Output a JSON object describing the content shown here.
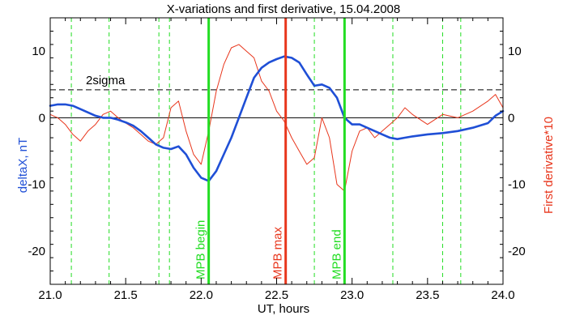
{
  "chart_data": {
    "type": "line",
    "title": "X-variations and first derivative, 15.04.2008",
    "xlabel": "UT, hours",
    "ylabel_left": "deltaX, nT",
    "ylabel_right": "First derivative*10",
    "xlim": [
      21.0,
      24.0
    ],
    "ylim_left": [
      -25,
      15
    ],
    "ylim_right": [
      -25,
      15
    ],
    "x_ticks": [
      21.0,
      21.5,
      22.0,
      22.5,
      23.0,
      23.5,
      24.0
    ],
    "x_tick_labels": [
      "21.0",
      "21.5",
      "22.0",
      "22.5",
      "23.0",
      "23.5",
      "24.0"
    ],
    "y_ticks": [
      10,
      0,
      -10,
      -20
    ],
    "y_tick_labels": [
      "10",
      "0",
      "-10",
      "-20"
    ],
    "colors": {
      "deltaX": "#1f4fd6",
      "derivative": "#e8361c",
      "mpb_boundary": "#22dd22",
      "mpb_max": "#e8361c",
      "reference": "#000000",
      "guide": "#22dd22"
    },
    "sigma_line": {
      "label": "2sigma",
      "y": 4.2
    },
    "zero_line": {
      "y": 0
    },
    "vertical_markers": [
      {
        "x": 22.05,
        "label": "MPB begin",
        "color": "#22dd22"
      },
      {
        "x": 22.56,
        "label": "MPB max",
        "color": "#e8361c"
      },
      {
        "x": 22.95,
        "label": "MPB end",
        "color": "#22dd22"
      }
    ],
    "dashed_guides": [
      21.14,
      21.39,
      21.72,
      21.79,
      22.75,
      23.27,
      23.6,
      23.72
    ],
    "series": [
      {
        "name": "deltaX, nT",
        "axis": "left",
        "x": [
          21.0,
          21.05,
          21.1,
          21.15,
          21.2,
          21.25,
          21.3,
          21.35,
          21.4,
          21.45,
          21.5,
          21.55,
          21.6,
          21.65,
          21.7,
          21.75,
          21.8,
          21.85,
          21.9,
          21.95,
          22.0,
          22.05,
          22.1,
          22.15,
          22.2,
          22.25,
          22.3,
          22.35,
          22.4,
          22.45,
          22.5,
          22.55,
          22.6,
          22.65,
          22.7,
          22.75,
          22.8,
          22.85,
          22.9,
          22.95,
          23.0,
          23.05,
          23.1,
          23.15,
          23.2,
          23.25,
          23.3,
          23.35,
          23.4,
          23.5,
          23.6,
          23.7,
          23.8,
          23.9,
          23.95,
          24.0
        ],
        "y": [
          1.8,
          2.0,
          2.0,
          1.8,
          1.3,
          0.8,
          0.3,
          0.0,
          0.0,
          -0.3,
          -0.7,
          -1.2,
          -2.0,
          -3.0,
          -4.0,
          -4.5,
          -4.7,
          -4.3,
          -5.5,
          -7.5,
          -9.0,
          -9.5,
          -8.0,
          -5.5,
          -3.0,
          0.0,
          3.0,
          6.0,
          7.5,
          8.3,
          8.8,
          9.2,
          9.0,
          8.3,
          6.5,
          4.8,
          5.0,
          4.5,
          3.0,
          0.0,
          -1.0,
          -1.0,
          -1.5,
          -2.0,
          -2.5,
          -3.0,
          -3.2,
          -3.0,
          -2.8,
          -2.5,
          -2.3,
          -2.0,
          -1.5,
          -0.8,
          0.3,
          1.0
        ]
      },
      {
        "name": "First derivative*10",
        "axis": "right",
        "x": [
          21.0,
          21.05,
          21.1,
          21.15,
          21.2,
          21.25,
          21.3,
          21.35,
          21.4,
          21.45,
          21.5,
          21.55,
          21.6,
          21.65,
          21.7,
          21.75,
          21.8,
          21.85,
          21.9,
          21.95,
          22.0,
          22.05,
          22.1,
          22.15,
          22.2,
          22.25,
          22.3,
          22.35,
          22.4,
          22.45,
          22.5,
          22.55,
          22.6,
          22.65,
          22.7,
          22.75,
          22.8,
          22.85,
          22.9,
          22.95,
          23.0,
          23.05,
          23.1,
          23.15,
          23.2,
          23.25,
          23.3,
          23.35,
          23.4,
          23.5,
          23.6,
          23.7,
          23.8,
          23.9,
          23.95,
          24.0
        ],
        "y": [
          0.5,
          0.0,
          -1.0,
          -2.5,
          -3.5,
          -2.0,
          -1.0,
          0.5,
          1.0,
          0.0,
          -0.8,
          -1.5,
          -2.5,
          -3.5,
          -4.0,
          -3.0,
          1.5,
          2.5,
          -2.0,
          -5.5,
          -7.0,
          -2.0,
          4.0,
          8.0,
          10.5,
          11.0,
          10.0,
          9.0,
          5.5,
          4.0,
          1.0,
          -0.5,
          -3.0,
          -5.0,
          -7.0,
          -6.0,
          0.0,
          -3.0,
          -10.0,
          -11.0,
          -5.0,
          -2.0,
          -1.5,
          -3.0,
          -2.0,
          -1.0,
          0.0,
          1.5,
          0.5,
          -1.0,
          0.5,
          0.0,
          1.0,
          2.5,
          3.5,
          1.5
        ]
      }
    ]
  }
}
